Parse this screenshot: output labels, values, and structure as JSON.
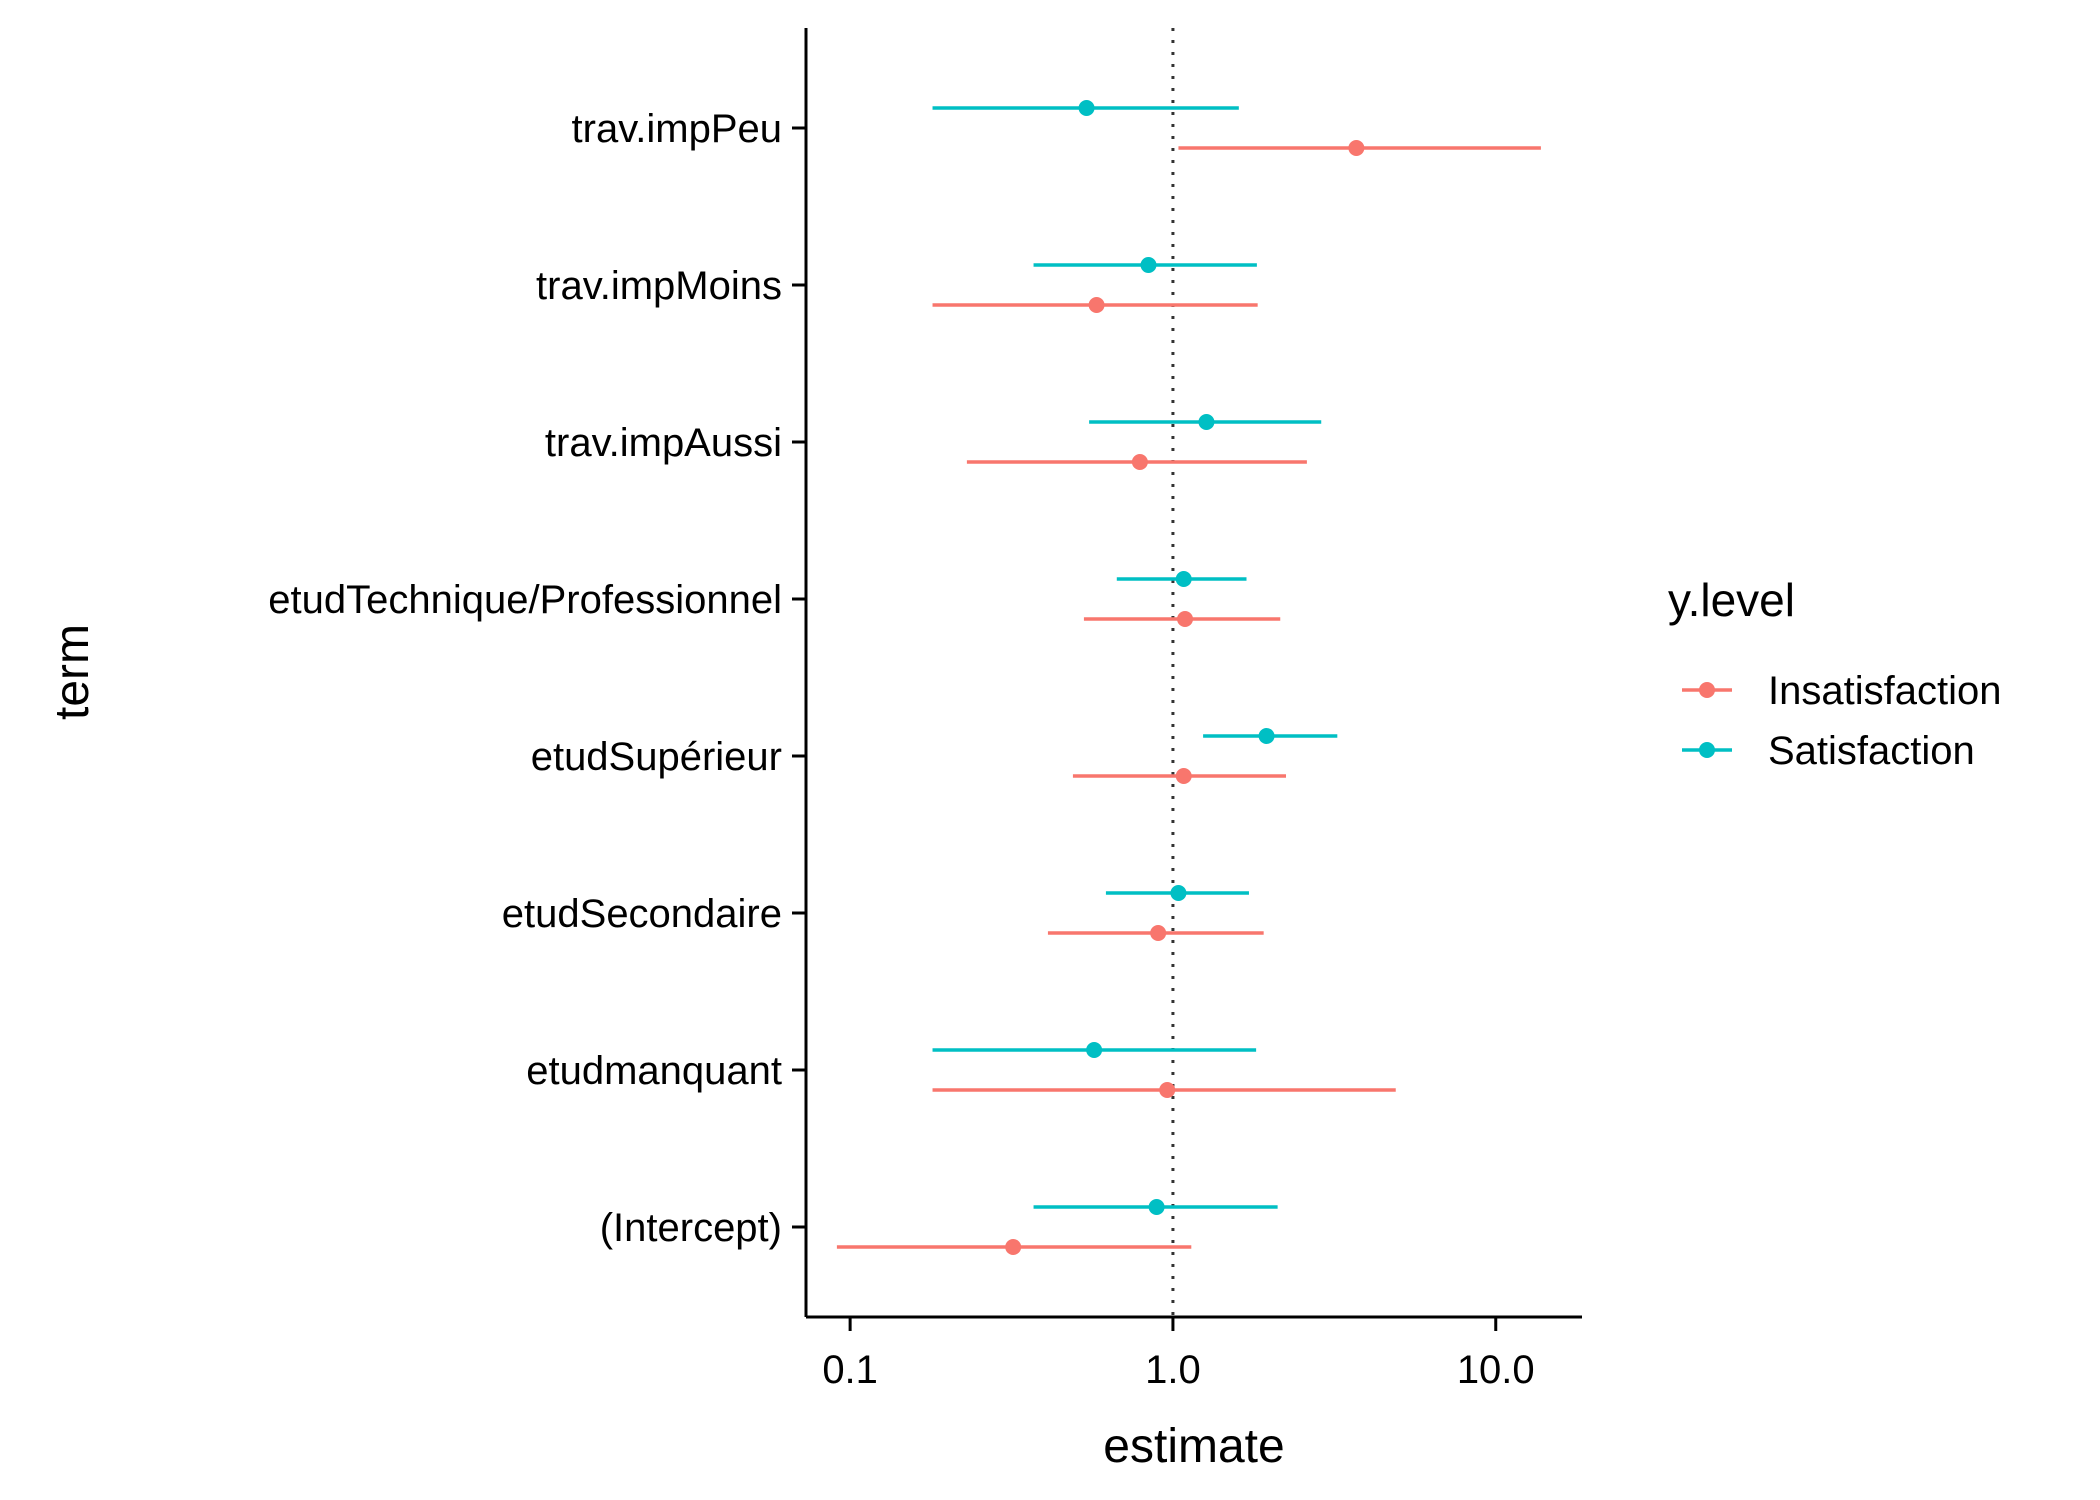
{
  "chart_data": {
    "type": "scatter",
    "subtype": "coefficient plot with horizontal error bars",
    "xlabel": "estimate",
    "ylabel": "term",
    "x_scale": "log10",
    "xlim": [
      0.073,
      18.5
    ],
    "x_ticks": [
      {
        "value": 0.1,
        "label": "0.1"
      },
      {
        "value": 1.0,
        "label": "1.0"
      },
      {
        "value": 10.0,
        "label": "10.0"
      }
    ],
    "reference_line": {
      "x": 1.0,
      "style": "dotted"
    },
    "categories": [
      "(Intercept)",
      "etudmanquant",
      "etudSecondaire",
      "etudSupérieur",
      "etudTechnique/Professionnel",
      "trav.impAussi",
      "trav.impMoins",
      "trav.impPeu"
    ],
    "legend": {
      "title": "y.level",
      "position": "right"
    },
    "grid": false,
    "series": [
      {
        "name": "Insatisfaction",
        "color": "#F8766D",
        "estimates": [
          0.32,
          0.96,
          0.9,
          1.08,
          1.09,
          0.79,
          0.58,
          3.7
        ],
        "conf_low": [
          0.091,
          0.18,
          0.41,
          0.49,
          0.53,
          0.23,
          0.18,
          1.04
        ],
        "conf_high": [
          1.14,
          4.9,
          1.91,
          2.24,
          2.15,
          2.6,
          1.83,
          13.8
        ]
      },
      {
        "name": "Satisfaction",
        "color": "#00BFC4",
        "estimates": [
          0.89,
          0.57,
          1.04,
          1.95,
          1.08,
          1.27,
          0.84,
          0.54
        ],
        "conf_low": [
          0.37,
          0.18,
          0.62,
          1.24,
          0.67,
          0.55,
          0.37,
          0.18
        ],
        "conf_high": [
          2.11,
          1.81,
          1.72,
          3.23,
          1.69,
          2.88,
          1.82,
          1.6
        ]
      }
    ]
  }
}
